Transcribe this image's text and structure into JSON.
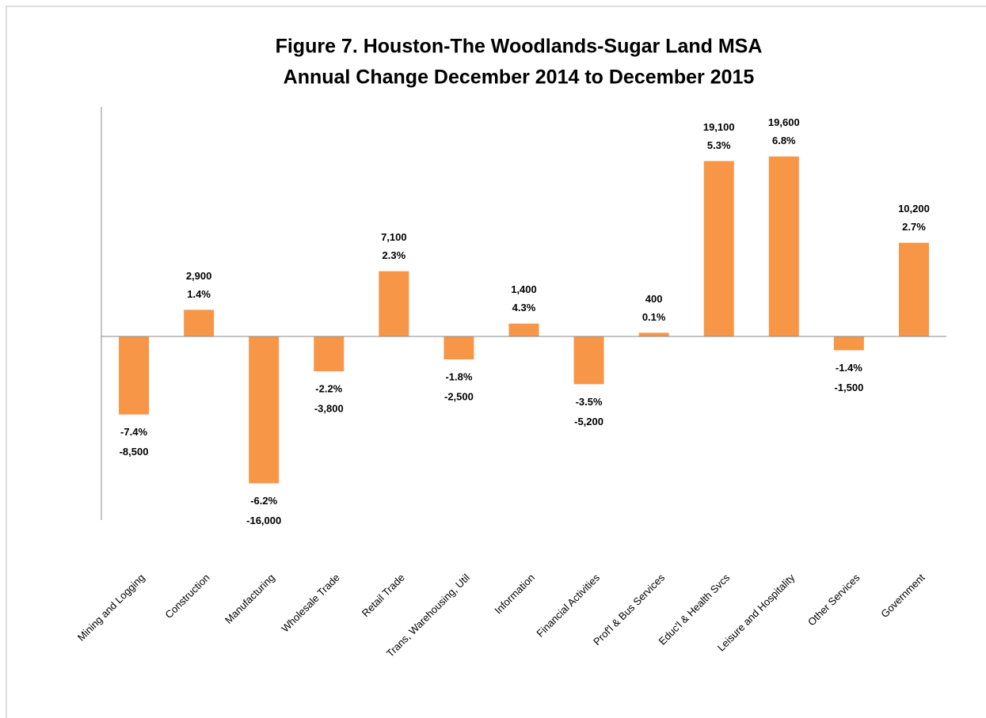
{
  "chart_data": {
    "type": "bar",
    "title": [
      "Figure 7. Houston-The Woodlands-Sugar Land MSA",
      "Annual Change December 2014 to December 2015"
    ],
    "categories": [
      "Mining and Logging",
      "Construction",
      "Manufacturing",
      "Wholesale Trade",
      "Retail Trade",
      "Trans, Warehousing, Util",
      "Information",
      "Financial Activities",
      "Prof'l & Bus Services",
      "Educ'l & Health Svcs",
      "Leisure and Hospitality",
      "Other Services",
      "Government"
    ],
    "values": [
      -8500,
      2900,
      -16000,
      -3800,
      7100,
      -2500,
      1400,
      -5200,
      400,
      19100,
      19600,
      -1500,
      10200
    ],
    "value_labels": [
      "-8,500",
      "2,900",
      "-16,000",
      "-3,800",
      "7,100",
      "-2,500",
      "1,400",
      "-5,200",
      "400",
      "19,100",
      "19,600",
      "-1,500",
      "10,200"
    ],
    "percent_change": {
      "values": [
        -7.4,
        1.4,
        -6.2,
        -2.2,
        2.3,
        -1.8,
        4.3,
        -3.5,
        0.1,
        5.3,
        6.8,
        -1.4,
        2.7
      ],
      "value_labels": [
        "-7.4%",
        "1.4%",
        "-6.2%",
        "-2.2%",
        "2.3%",
        "-1.8%",
        "4.3%",
        "-3.5%",
        "0.1%",
        "5.3%",
        "6.8%",
        "-1.4%",
        "2.7%"
      ]
    },
    "color": "#F79646",
    "ylim": [
      -20000,
      25000
    ]
  }
}
